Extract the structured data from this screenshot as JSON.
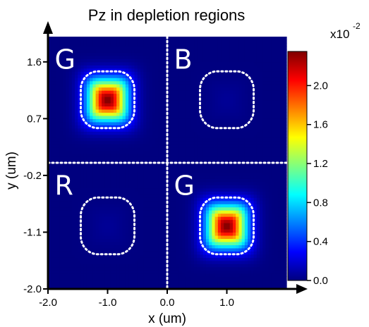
{
  "chart_data": {
    "type": "heatmap",
    "title": "Pz in depletion regions",
    "xlabel": "x (um)",
    "ylabel": "y (um)",
    "xlim": [
      -2.0,
      2.0
    ],
    "ylim": [
      -2.0,
      2.0
    ],
    "x_ticks": [
      "-2.0",
      "-1.0",
      "0.0",
      "1.0"
    ],
    "x_tick_values": [
      -2.0,
      -1.0,
      0.0,
      1.0
    ],
    "y_ticks": [
      "-2.0",
      "-1.1",
      "-0.2",
      "0.7",
      "1.6"
    ],
    "y_tick_values": [
      -2.0,
      -1.1,
      -0.2,
      0.7,
      1.6
    ],
    "colorbar": {
      "multiplier": "x10",
      "exponent": "-2",
      "min": 0.0,
      "max": 2.35,
      "ticks": [
        "0.0",
        "0.4",
        "0.8",
        "1.2",
        "1.6",
        "2.0"
      ],
      "tick_values": [
        0.0,
        0.4,
        0.8,
        1.2,
        1.6,
        2.0
      ]
    },
    "divider_lines": {
      "x": 0.0,
      "y": 0.0,
      "style": "dotted",
      "color": "#ffffff"
    },
    "quadrants": [
      {
        "label": "G",
        "center": [
          -1.0,
          1.0
        ],
        "peak": 2.35,
        "half_size": 0.4,
        "region_radius": 0.5
      },
      {
        "label": "B",
        "center": [
          1.0,
          1.0
        ],
        "peak": 0.05,
        "half_size": 0.4,
        "region_radius": 0.5
      },
      {
        "label": "R",
        "center": [
          -1.0,
          -1.0
        ],
        "peak": 0.05,
        "half_size": 0.4,
        "region_radius": 0.5
      },
      {
        "label": "G",
        "center": [
          1.0,
          -1.0
        ],
        "peak": 2.35,
        "half_size": 0.4,
        "region_radius": 0.5
      }
    ],
    "colormap": [
      "#00007f",
      "#0000ff",
      "#007fff",
      "#00ffff",
      "#7fff7f",
      "#ffff00",
      "#ff7f00",
      "#ff0000",
      "#7f0000"
    ]
  }
}
